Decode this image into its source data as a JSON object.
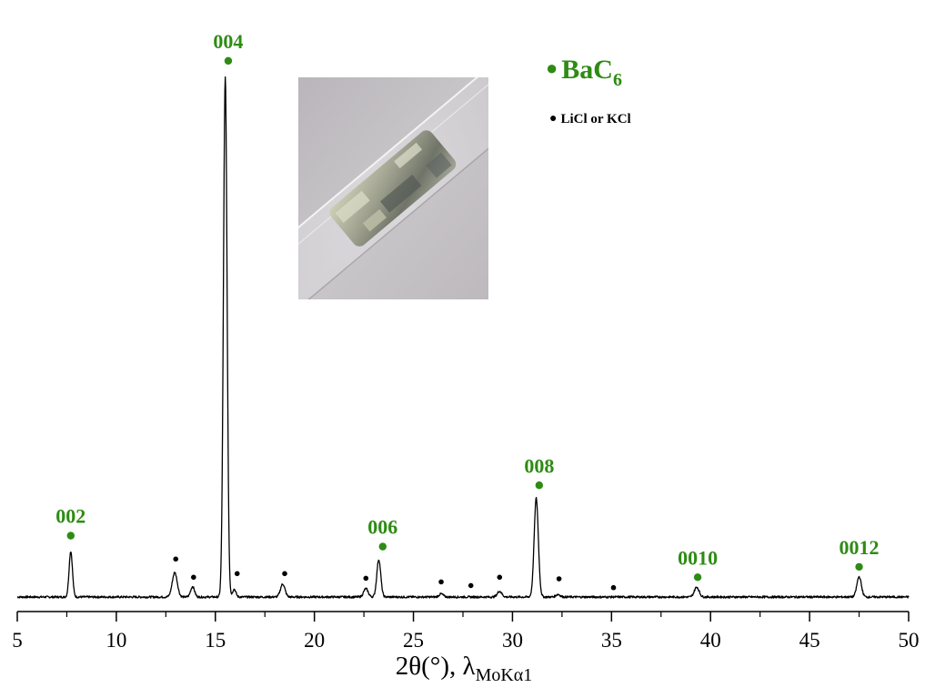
{
  "chart_data": {
    "type": "line",
    "xlabel_main": "2θ(°), λ",
    "xlabel_sub": "MoKα1",
    "xlim": [
      5,
      50
    ],
    "ylim": [
      0,
      1.03
    ],
    "x_ticks": [
      "5",
      "10",
      "15",
      "20",
      "25",
      "30",
      "35",
      "40",
      "45",
      "50"
    ],
    "grid": false,
    "legend": [
      {
        "main": "BaC",
        "sub": "6",
        "color": "#2e8b14"
      },
      {
        "text": "LiCl or KCl",
        "color": "#000000"
      }
    ],
    "series": [
      {
        "baseline": 0.0,
        "peaks": [
          {
            "x": 7.7,
            "height": 0.088,
            "width": 0.12
          },
          {
            "x": 12.95,
            "height": 0.047,
            "width": 0.18
          },
          {
            "x": 13.85,
            "height": 0.02,
            "width": 0.14
          },
          {
            "x": 15.5,
            "height": 1.0,
            "width": 0.13
          },
          {
            "x": 15.95,
            "height": 0.015,
            "width": 0.12
          },
          {
            "x": 18.4,
            "height": 0.025,
            "width": 0.16
          },
          {
            "x": 22.6,
            "height": 0.016,
            "width": 0.16
          },
          {
            "x": 23.25,
            "height": 0.072,
            "width": 0.14
          },
          {
            "x": 26.4,
            "height": 0.006,
            "width": 0.15
          },
          {
            "x": 29.35,
            "height": 0.011,
            "width": 0.16
          },
          {
            "x": 31.2,
            "height": 0.19,
            "width": 0.15
          },
          {
            "x": 32.3,
            "height": 0.005,
            "width": 0.15
          },
          {
            "x": 39.3,
            "height": 0.019,
            "width": 0.17
          },
          {
            "x": 47.5,
            "height": 0.039,
            "width": 0.16
          }
        ]
      }
    ],
    "annotations": [
      {
        "label": "002",
        "x": 7.7,
        "y": 0.118
      },
      {
        "label": "004",
        "x": 15.65,
        "y": 1.032
      },
      {
        "label": "006",
        "x": 23.45,
        "y": 0.097
      },
      {
        "label": "008",
        "x": 31.35,
        "y": 0.215
      },
      {
        "label": "0010",
        "x": 39.35,
        "y": 0.038
      },
      {
        "label": "0012",
        "x": 47.5,
        "y": 0.058
      }
    ],
    "impurity_markers": [
      {
        "x": 13.0,
        "y": 0.073
      },
      {
        "x": 13.9,
        "y": 0.038
      },
      {
        "x": 16.1,
        "y": 0.045
      },
      {
        "x": 18.5,
        "y": 0.045
      },
      {
        "x": 22.6,
        "y": 0.036
      },
      {
        "x": 26.4,
        "y": 0.029
      },
      {
        "x": 27.9,
        "y": 0.022
      },
      {
        "x": 29.35,
        "y": 0.038
      },
      {
        "x": 32.35,
        "y": 0.035
      },
      {
        "x": 35.1,
        "y": 0.018
      }
    ]
  },
  "inset_photo": {
    "kind": "photo of sample sealed in glass capillary"
  },
  "colors": {
    "annotation": "#2e8b14",
    "line": "#000000",
    "impurity": "#000000"
  }
}
